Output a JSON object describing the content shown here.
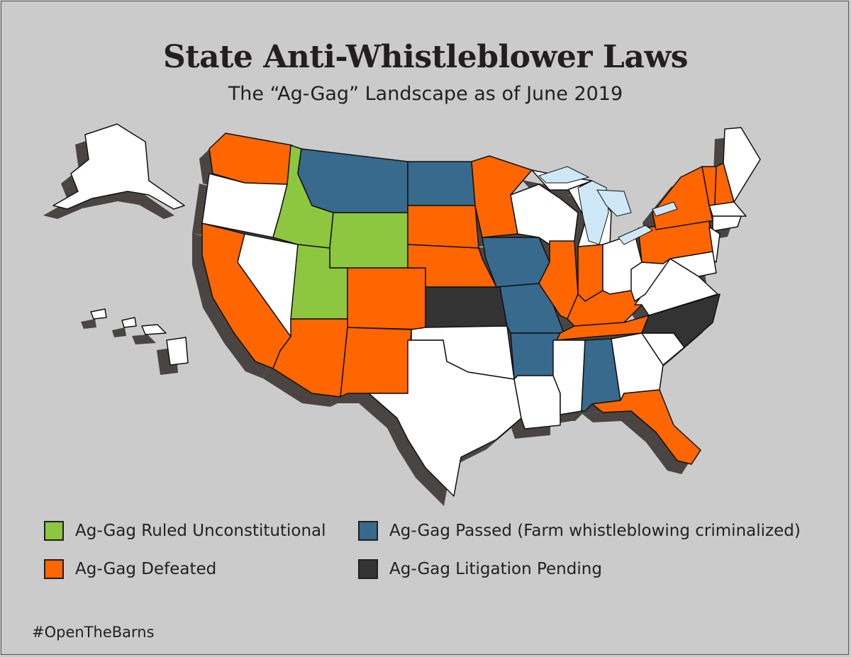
{
  "title": "State Anti-Whistleblower Laws",
  "subtitle": "The “Ag-Gag” Landscape as of June 2019",
  "legend": [
    {
      "id": "unconstitutional",
      "label": "Ag-Gag Ruled Unconstitutional",
      "color": "#8dc63f"
    },
    {
      "id": "defeated",
      "label": "Ag-Gag Defeated",
      "color": "#ff6600"
    },
    {
      "id": "passed",
      "label": "Ag-Gag Passed (Farm whistleblowing criminalized)",
      "color": "#376a8c"
    },
    {
      "id": "pending",
      "label": "Ag-Gag Litigation Pending",
      "color": "#333333"
    }
  ],
  "colors": {
    "none": "#ffffff",
    "lakes": "#cfe8f7",
    "shadow": "#4a4543",
    "background": "#cbcbcb"
  },
  "state_status": {
    "ID": "unconstitutional",
    "WY": "unconstitutional",
    "UT": "unconstitutional",
    "WA": "defeated",
    "CA": "defeated",
    "AZ": "defeated",
    "NM": "defeated",
    "CO": "defeated",
    "SD": "defeated",
    "NE": "defeated",
    "MN": "defeated",
    "IL": "defeated",
    "IN": "defeated",
    "KY": "defeated",
    "TN": "defeated",
    "NY": "defeated",
    "PA": "defeated",
    "VT": "defeated",
    "NH": "defeated",
    "FL": "defeated",
    "MT": "passed",
    "ND": "passed",
    "IA": "passed",
    "MO": "passed",
    "AR": "passed",
    "AL": "passed",
    "KS": "pending",
    "NC": "pending"
  },
  "hashtag": "#OpenTheBarns"
}
